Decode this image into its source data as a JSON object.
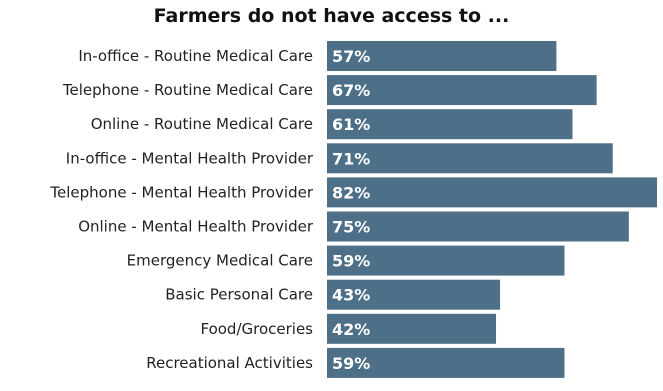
{
  "chart_data": {
    "type": "bar",
    "orientation": "horizontal",
    "title": "Farmers do not have access to ...",
    "categories": [
      "In-office - Routine Medical Care",
      "Telephone - Routine Medical Care",
      "Online - Routine Medical Care",
      "In-office - Mental Health Provider",
      "Telephone - Mental Health Provider",
      "Online - Mental Health Provider",
      "Emergency Medical Care",
      "Basic Personal Care",
      "Food/Groceries",
      "Recreational Activities"
    ],
    "values": [
      57,
      67,
      61,
      71,
      82,
      75,
      59,
      43,
      42,
      59
    ],
    "value_labels": [
      "57%",
      "67%",
      "61%",
      "71%",
      "82%",
      "75%",
      "59%",
      "43%",
      "42%",
      "59%"
    ],
    "xlim": [
      0,
      100
    ],
    "grid": false,
    "legend": "none",
    "bar_color": "#4d6f87"
  }
}
